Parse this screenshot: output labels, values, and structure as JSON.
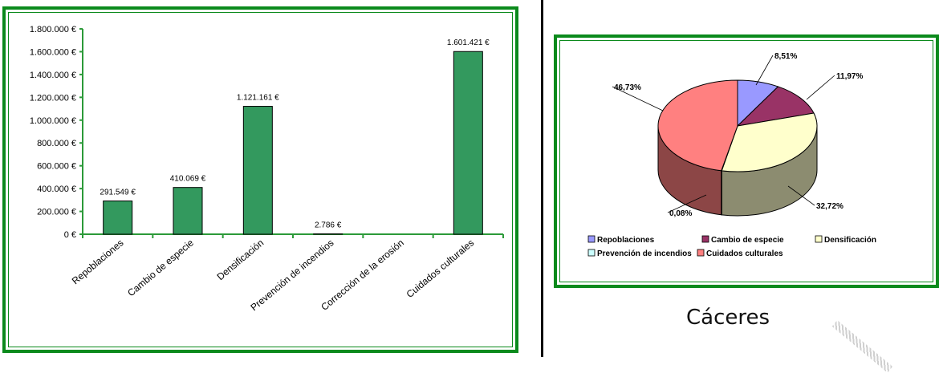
{
  "colors": {
    "frame": "#0b8a1c",
    "bar": "#33995e",
    "axis": "#2c9a39"
  },
  "chart_data": [
    {
      "type": "bar",
      "categories": [
        "Repoblaciones",
        "Cambio de especie",
        "Densificación",
        "Prevención de incendios",
        "Corrección de la erosión",
        "Cuidados culturales"
      ],
      "values": [
        291549,
        410069,
        1121161,
        2786,
        0,
        1601421
      ],
      "data_labels": [
        "291.549 €",
        "410.069 €",
        "1.121.161 €",
        "2.786 €",
        "",
        "1.601.421 €"
      ],
      "yticks": [
        "0 €",
        "200.000 €",
        "400.000 €",
        "600.000 €",
        "800.000 €",
        "1.000.000 €",
        "1.200.000 €",
        "1.400.000 €",
        "1.600.000 €",
        "1.800.000 €"
      ],
      "ylim": [
        0,
        1800000
      ],
      "grid": false
    },
    {
      "type": "pie",
      "labels": [
        "Repoblaciones",
        "Cambio de especie",
        "Densificación",
        "Prevención de incendios",
        "Cuidados culturales"
      ],
      "values": [
        8.51,
        11.97,
        32.72,
        0.08,
        46.73
      ],
      "data_labels": [
        "8,51%",
        "11,97%",
        "32,72%",
        "0,08%",
        "46,73%"
      ],
      "colors": [
        "#9999ff",
        "#993366",
        "#ffffcc",
        "#ccffff",
        "#ff8080"
      ],
      "legend_position": "bottom"
    }
  ],
  "caption": "Cáceres"
}
